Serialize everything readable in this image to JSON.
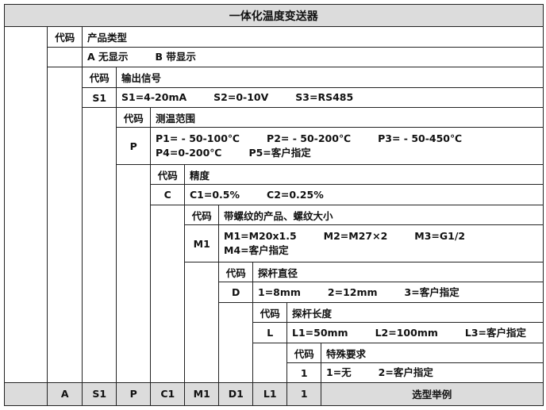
{
  "title": "一体化温度变送器",
  "levels": [
    {
      "code_label": "代码",
      "heading": "产品类型",
      "code": "",
      "lines": [
        [
          "A 无显示",
          "B 带显示"
        ]
      ]
    },
    {
      "code_label": "代码",
      "heading": "输出信号",
      "code": "S1",
      "lines": [
        [
          "S1=4-20mA",
          "S2=0-10V",
          "S3=RS485"
        ]
      ]
    },
    {
      "code_label": "代码",
      "heading": "测温范围",
      "code": "P",
      "lines": [
        [
          "P1= - 50-100℃",
          "P2= - 50-200℃",
          "P3= - 50-450℃"
        ],
        [
          "P4=0-200℃",
          "P5=客户指定"
        ]
      ]
    },
    {
      "code_label": "代码",
      "heading": "精度",
      "code": "C",
      "lines": [
        [
          "C1=0.5%",
          "C2=0.25%"
        ]
      ]
    },
    {
      "code_label": "代码",
      "heading": "带螺纹的产品、螺纹大小",
      "code": "M1",
      "lines": [
        [
          "M1=M20x1.5",
          "M2=M27×2",
          "M3=G1/2"
        ],
        [
          "M4=客户指定"
        ]
      ]
    },
    {
      "code_label": "代码",
      "heading": "探杆直径",
      "code": "D",
      "lines": [
        [
          "1=8mm",
          "2=12mm",
          "3=客户指定"
        ]
      ]
    },
    {
      "code_label": "代码",
      "heading": "探杆长度",
      "code": "L",
      "lines": [
        [
          "L1=50mm",
          "L2=100mm",
          "L3=客户指定"
        ]
      ]
    },
    {
      "code_label": "代码",
      "heading": "特殊要求",
      "code": "1",
      "lines": [
        [
          "1=无",
          "2=客户指定"
        ]
      ]
    }
  ],
  "example": {
    "codes": [
      "A",
      "S1",
      "P",
      "C1",
      "M1",
      "D1",
      "L1",
      "1"
    ],
    "label": "选型举例"
  }
}
